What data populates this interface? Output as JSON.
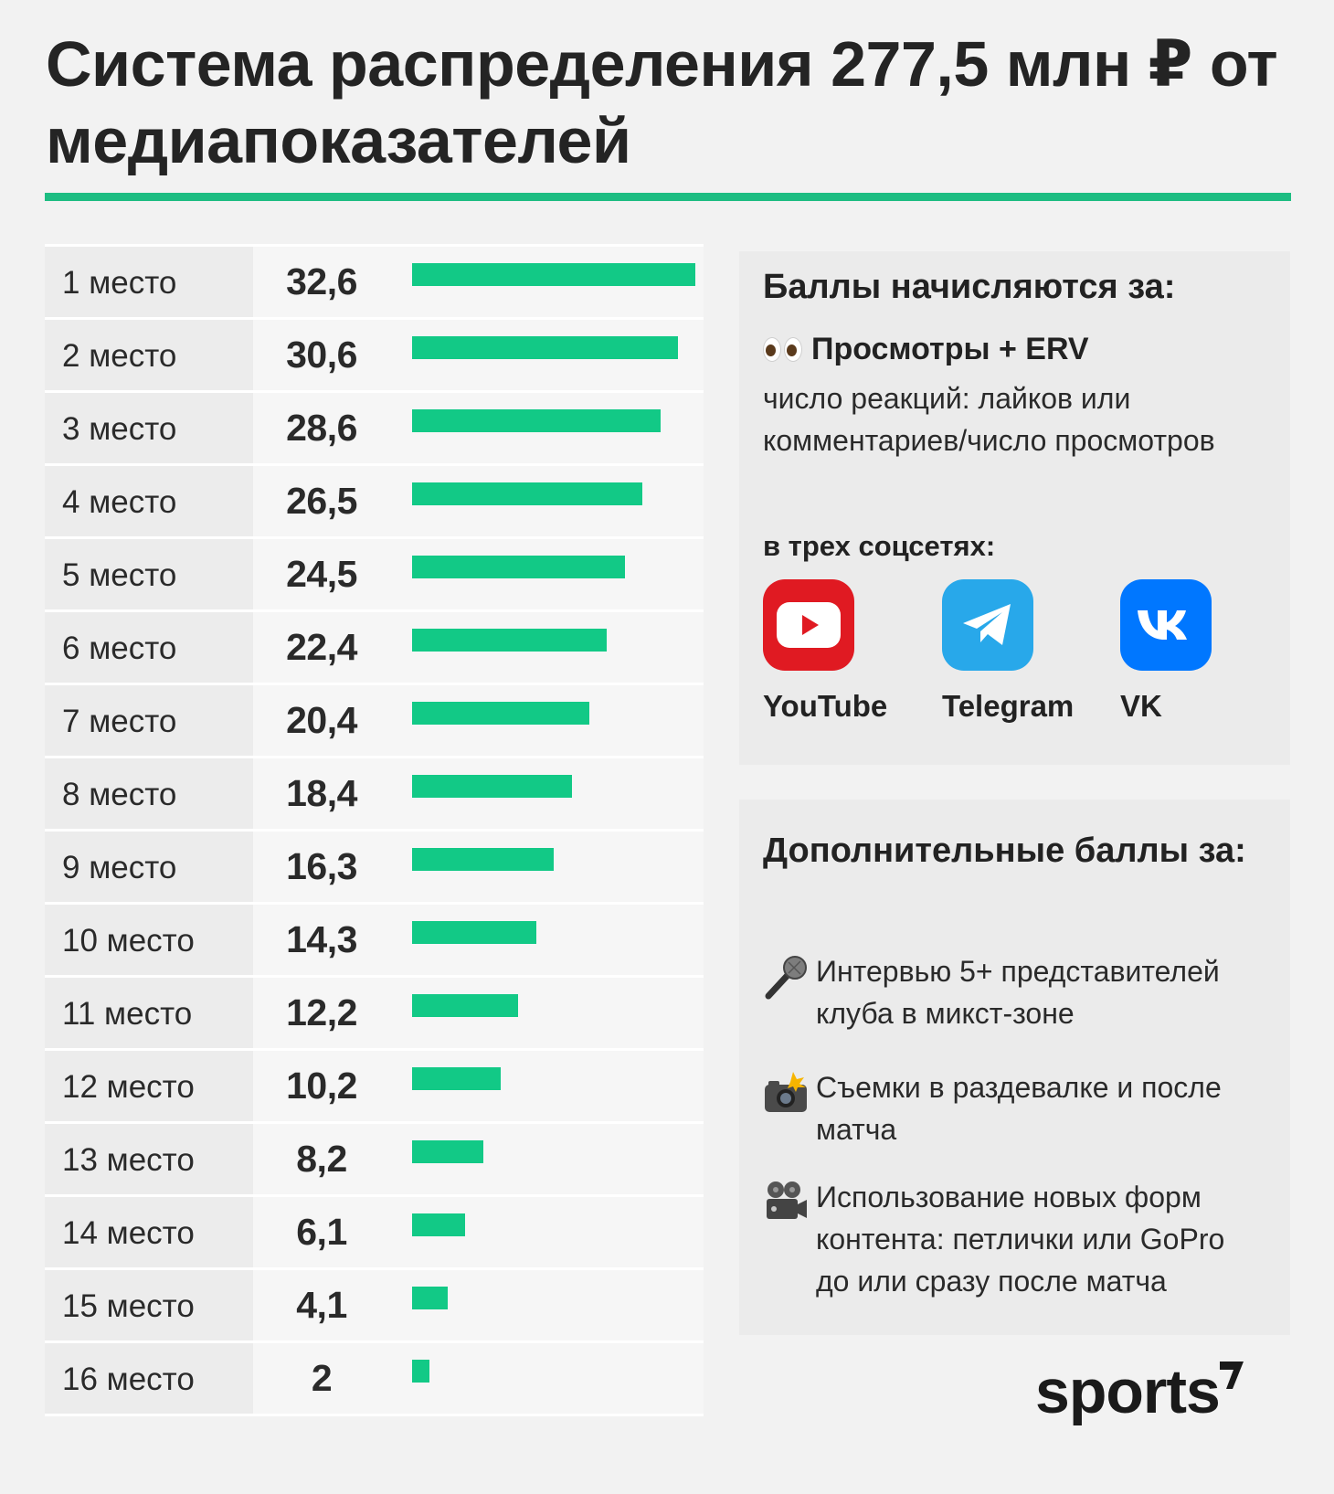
{
  "title": "Система распределения 277,5 млн ₽ от медиапоказателей",
  "chart_data": {
    "type": "bar",
    "orientation": "horizontal",
    "title": "Система распределения 277,5 млн ₽ от медиапоказателей",
    "categories": [
      "1 место",
      "2 место",
      "3 место",
      "4 место",
      "5 место",
      "6 место",
      "7 место",
      "8 место",
      "9 место",
      "10 место",
      "11 место",
      "12 место",
      "13 место",
      "14 место",
      "15 место",
      "16 место"
    ],
    "values": [
      32.6,
      30.6,
      28.6,
      26.5,
      24.5,
      22.4,
      20.4,
      18.4,
      16.3,
      14.3,
      12.2,
      10.2,
      8.2,
      6.1,
      4.1,
      2
    ],
    "value_labels": [
      "32,6",
      "30,6",
      "28,6",
      "26,5",
      "24,5",
      "22,4",
      "20,4",
      "18,4",
      "16,3",
      "14,3",
      "12,2",
      "10,2",
      "8,2",
      "6,1",
      "4,1",
      "2"
    ],
    "xlim": [
      0,
      32.6
    ],
    "bar_color": "#12c986",
    "grid": false
  },
  "points_card": {
    "title": "Баллы начисляются за:",
    "erv_title": "Просмотры + ERV",
    "erv_description": "число реакций: лайков или комментариев/число просмотров",
    "networks_label": "в трех соцсетях:",
    "networks": [
      {
        "name": "YouTube",
        "icon": "youtube-icon",
        "color": "#e01a22"
      },
      {
        "name": "Telegram",
        "icon": "telegram-icon",
        "color": "#28a8ea"
      },
      {
        "name": "VK",
        "icon": "vk-icon",
        "color": "#0077ff"
      }
    ]
  },
  "bonus_card": {
    "title": "Дополнительные баллы за:",
    "items": [
      {
        "icon": "microphone-icon",
        "text": "Интервью 5+ представителей клуба в микст-зоне"
      },
      {
        "icon": "camera-flash-icon",
        "text": "Съемки в раздевалке и после матча"
      },
      {
        "icon": "movie-camera-icon",
        "text": "Использование новых форм контента: петлички или GoPro до или сразу после матча"
      }
    ]
  },
  "brand": {
    "logo_text": "sports",
    "accent": "#1dbd82"
  }
}
